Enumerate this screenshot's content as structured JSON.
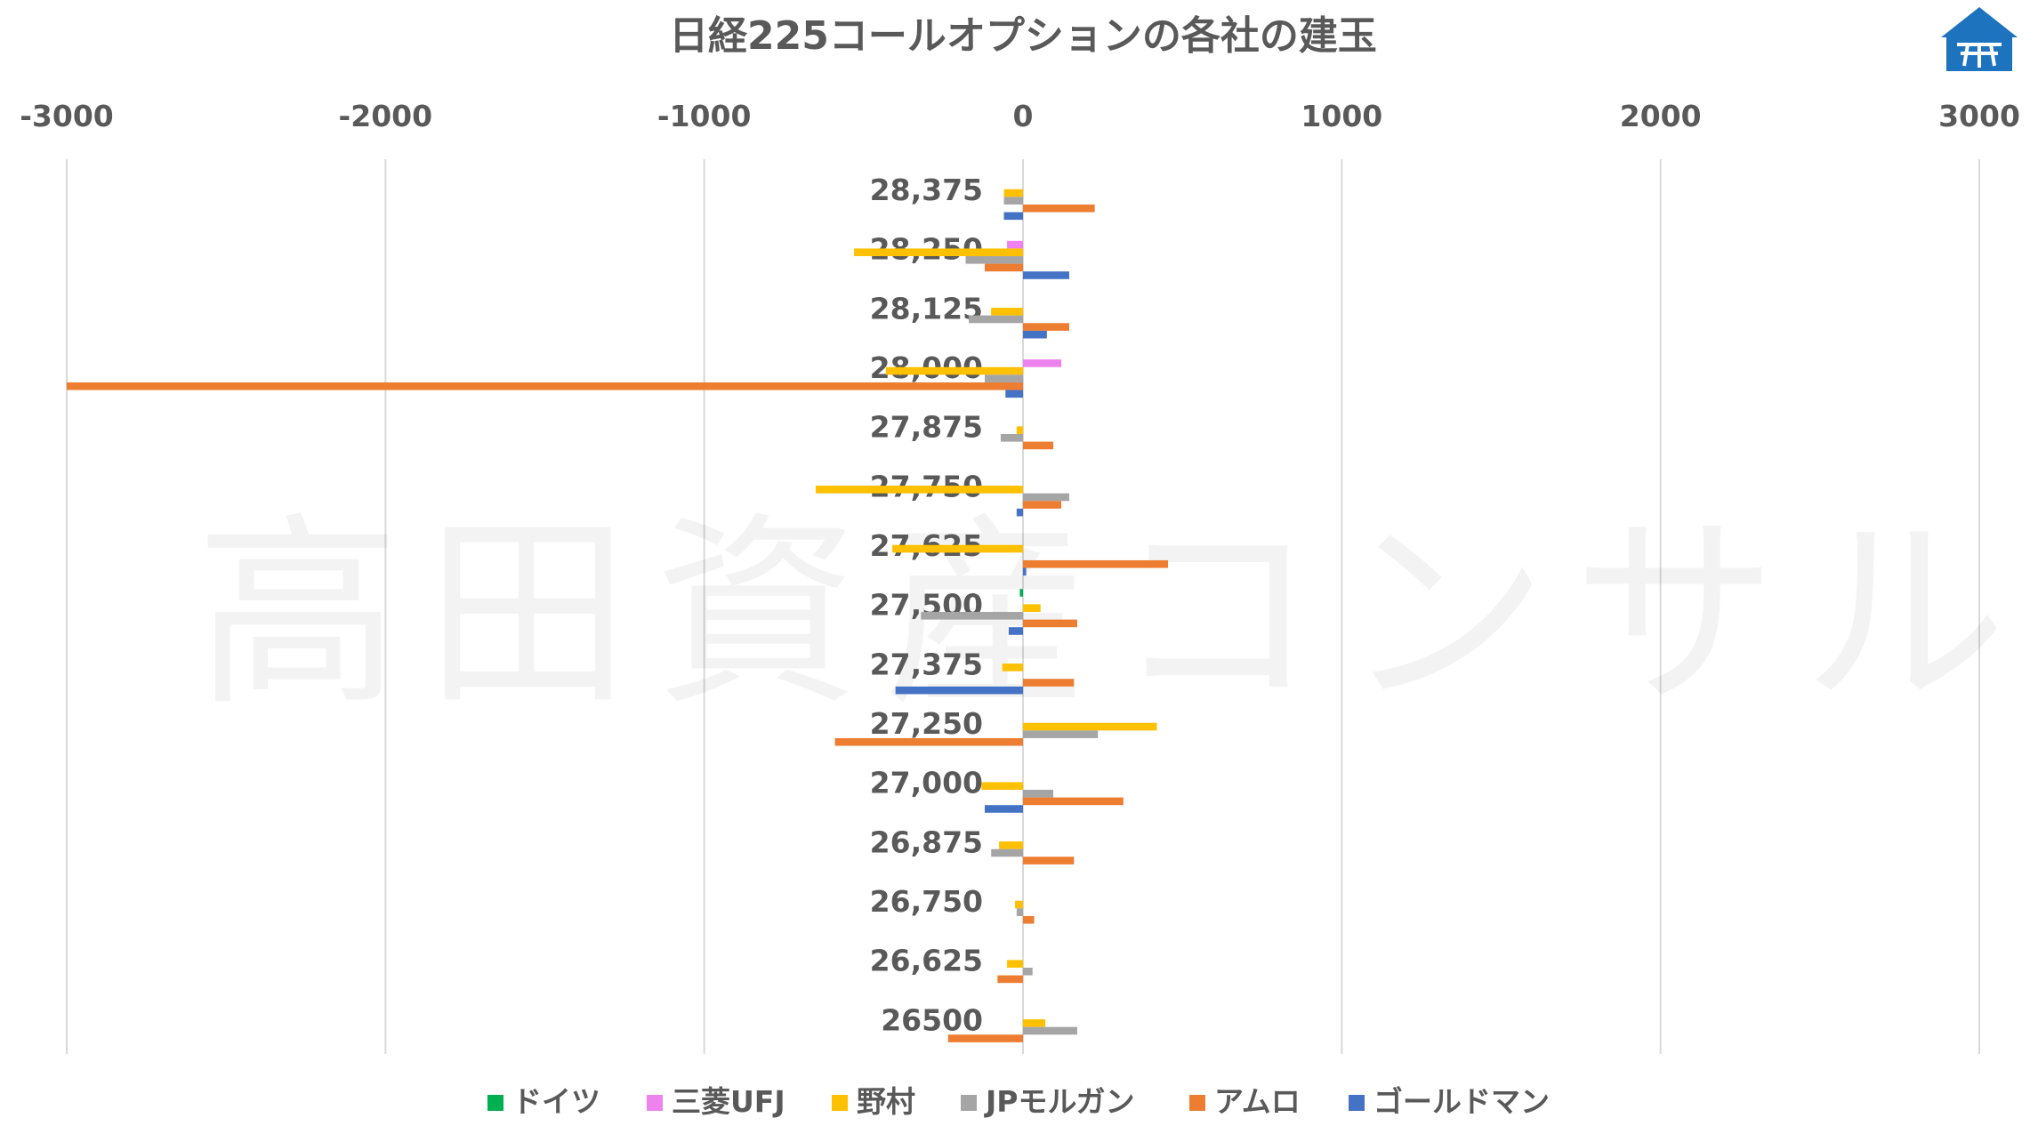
{
  "chart_data": {
    "type": "bar",
    "orientation": "horizontal",
    "title": "日経225コールオプションの各社の建玉",
    "xlim": [
      -3000,
      3000
    ],
    "xticks": [
      -3000,
      -2000,
      -1000,
      0,
      1000,
      2000,
      3000
    ],
    "xaxis_position": "top",
    "grid": true,
    "legend_position": "bottom",
    "categories": [
      "28,375",
      "28,250",
      "28,125",
      "28,000",
      "27,875",
      "27,750",
      "27,625",
      "27,500",
      "27,375",
      "27,250",
      "27,000",
      "26,875",
      "26,750",
      "26,625",
      "26500"
    ],
    "series": [
      {
        "name": "ドイツ",
        "color": "#00B050",
        "values": [
          0,
          0,
          0,
          0,
          0,
          0,
          0,
          -10,
          0,
          0,
          0,
          0,
          0,
          0,
          0
        ]
      },
      {
        "name": "三菱UFJ",
        "color": "#EE82EE",
        "values": [
          0,
          -50,
          0,
          120,
          0,
          0,
          0,
          0,
          0,
          0,
          0,
          0,
          0,
          0,
          0
        ]
      },
      {
        "name": "野村",
        "color": "#FFC000",
        "values": [
          -60,
          -530,
          -100,
          -430,
          -20,
          -650,
          -410,
          55,
          -65,
          420,
          -130,
          -75,
          -25,
          -50,
          70
        ]
      },
      {
        "name": "JPモルガン",
        "color": "#A5A5A5",
        "values": [
          -60,
          -180,
          -170,
          -120,
          -70,
          145,
          0,
          -320,
          0,
          235,
          95,
          -100,
          -20,
          30,
          170
        ]
      },
      {
        "name": "アムロ",
        "color": "#ED7D31",
        "values": [
          225,
          -120,
          145,
          -3000,
          95,
          120,
          455,
          170,
          160,
          -590,
          315,
          160,
          35,
          -80,
          -235
        ]
      },
      {
        "name": "ゴールドマン",
        "color": "#4472C4",
        "values": [
          -60,
          145,
          75,
          -55,
          0,
          -20,
          10,
          -45,
          -400,
          0,
          -120,
          0,
          0,
          0,
          0
        ]
      }
    ]
  },
  "watermark": "高田資産コンサル",
  "logo": {
    "icon": "house-logo-icon",
    "color": "#1E73BE"
  }
}
